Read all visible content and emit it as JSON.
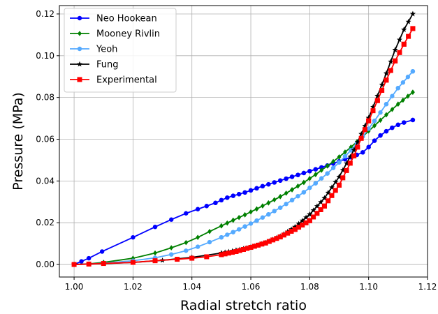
{
  "chart_data": {
    "type": "line",
    "xlabel": "Radial stretch ratio",
    "ylabel": "Pressure (MPa)",
    "xlim": [
      0.995,
      1.12
    ],
    "ylim": [
      -0.006,
      0.124
    ],
    "x_ticks": [
      "1.00",
      "1.02",
      "1.04",
      "1.06",
      "1.08",
      "1.10",
      "1.12"
    ],
    "y_ticks": [
      "0.00",
      "0.02",
      "0.04",
      "0.06",
      "0.08",
      "0.10",
      "0.12"
    ],
    "grid": true,
    "legend_position": "top-left",
    "series": [
      {
        "name": "Neo Hookean",
        "color": "#0000ff",
        "marker": "circle",
        "x": [
          1.0,
          1.0025,
          1.005,
          1.0095,
          1.02,
          1.0275,
          1.033,
          1.038,
          1.042,
          1.045,
          1.048,
          1.05,
          1.052,
          1.054,
          1.056,
          1.058,
          1.06,
          1.062,
          1.064,
          1.066,
          1.068,
          1.07,
          1.072,
          1.074,
          1.076,
          1.078,
          1.08,
          1.082,
          1.084,
          1.086,
          1.088,
          1.09,
          1.092,
          1.094,
          1.096,
          1.098,
          1.1,
          1.102,
          1.104,
          1.106,
          1.108,
          1.11,
          1.112,
          1.115
        ],
        "y": [
          0.0,
          0.0015,
          0.003,
          0.0062,
          0.013,
          0.018,
          0.0215,
          0.0245,
          0.0265,
          0.028,
          0.0295,
          0.0308,
          0.032,
          0.0329,
          0.0337,
          0.0345,
          0.0355,
          0.0365,
          0.0375,
          0.0384,
          0.0393,
          0.0402,
          0.0411,
          0.042,
          0.0429,
          0.0438,
          0.0447,
          0.0456,
          0.0465,
          0.0474,
          0.0484,
          0.0494,
          0.0504,
          0.0514,
          0.0525,
          0.0537,
          0.0562,
          0.0593,
          0.0618,
          0.0638,
          0.0655,
          0.0669,
          0.068,
          0.0692
        ]
      },
      {
        "name": "Mooney Rivlin",
        "color": "#008000",
        "marker": "diamond",
        "x": [
          1.0,
          1.005,
          1.01,
          1.02,
          1.0275,
          1.033,
          1.038,
          1.042,
          1.046,
          1.05,
          1.054,
          1.058,
          1.062,
          1.066,
          1.07,
          1.074,
          1.078,
          1.082,
          1.086,
          1.09,
          1.094,
          1.098,
          1.102,
          1.106,
          1.11,
          1.115
        ],
        "y": [
          0.0,
          0.0003,
          0.001,
          0.003,
          0.0055,
          0.008,
          0.0105,
          0.013,
          0.0158,
          0.0185,
          0.0212,
          0.0238,
          0.0266,
          0.0295,
          0.0325,
          0.0358,
          0.0393,
          0.0431,
          0.0472,
          0.0515,
          0.0562,
          0.0613,
          0.0665,
          0.0717,
          0.0768,
          0.0825
        ]
      },
      {
        "name": "Yeoh",
        "color": "#55aaff",
        "marker": "circle",
        "x": [
          1.0,
          1.005,
          1.01,
          1.02,
          1.0275,
          1.033,
          1.038,
          1.042,
          1.046,
          1.05,
          1.054,
          1.058,
          1.062,
          1.066,
          1.07,
          1.074,
          1.078,
          1.082,
          1.086,
          1.09,
          1.094,
          1.098,
          1.102,
          1.106,
          1.11,
          1.115
        ],
        "y": [
          0.0,
          0.0002,
          0.0006,
          0.0018,
          0.0032,
          0.0048,
          0.0066,
          0.0085,
          0.0107,
          0.013,
          0.0155,
          0.0182,
          0.021,
          0.024,
          0.0272,
          0.0308,
          0.0346,
          0.0389,
          0.0436,
          0.0489,
          0.0547,
          0.0613,
          0.0688,
          0.0768,
          0.0845,
          0.0925
        ]
      },
      {
        "name": "Fung",
        "color": "#000000",
        "marker": "star",
        "x": [
          1.0,
          1.01,
          1.02,
          1.03,
          1.04,
          1.05,
          1.055,
          1.06,
          1.065,
          1.07,
          1.075,
          1.08,
          1.085,
          1.09,
          1.095,
          1.1,
          1.103,
          1.106,
          1.109,
          1.112,
          1.115
        ],
        "y": [
          0.0,
          0.0004,
          0.001,
          0.002,
          0.0034,
          0.0055,
          0.0068,
          0.0083,
          0.0104,
          0.0135,
          0.018,
          0.024,
          0.0318,
          0.042,
          0.0548,
          0.0702,
          0.0807,
          0.0915,
          0.1028,
          0.1125,
          0.12
        ]
      },
      {
        "name": "Experimental",
        "color": "#ff0000",
        "marker": "square",
        "x": [
          1.0,
          1.005,
          1.01,
          1.02,
          1.0275,
          1.035,
          1.04,
          1.045,
          1.05,
          1.055,
          1.06,
          1.065,
          1.07,
          1.075,
          1.08,
          1.085,
          1.09,
          1.095,
          1.1,
          1.103,
          1.106,
          1.109,
          1.112,
          1.115
        ],
        "y": [
          0.0,
          0.0002,
          0.0005,
          0.001,
          0.0018,
          0.0025,
          0.003,
          0.0037,
          0.0047,
          0.0062,
          0.0082,
          0.0103,
          0.0132,
          0.0168,
          0.021,
          0.028,
          0.038,
          0.052,
          0.0688,
          0.0785,
          0.0883,
          0.0975,
          0.1055,
          0.113
        ]
      }
    ]
  }
}
